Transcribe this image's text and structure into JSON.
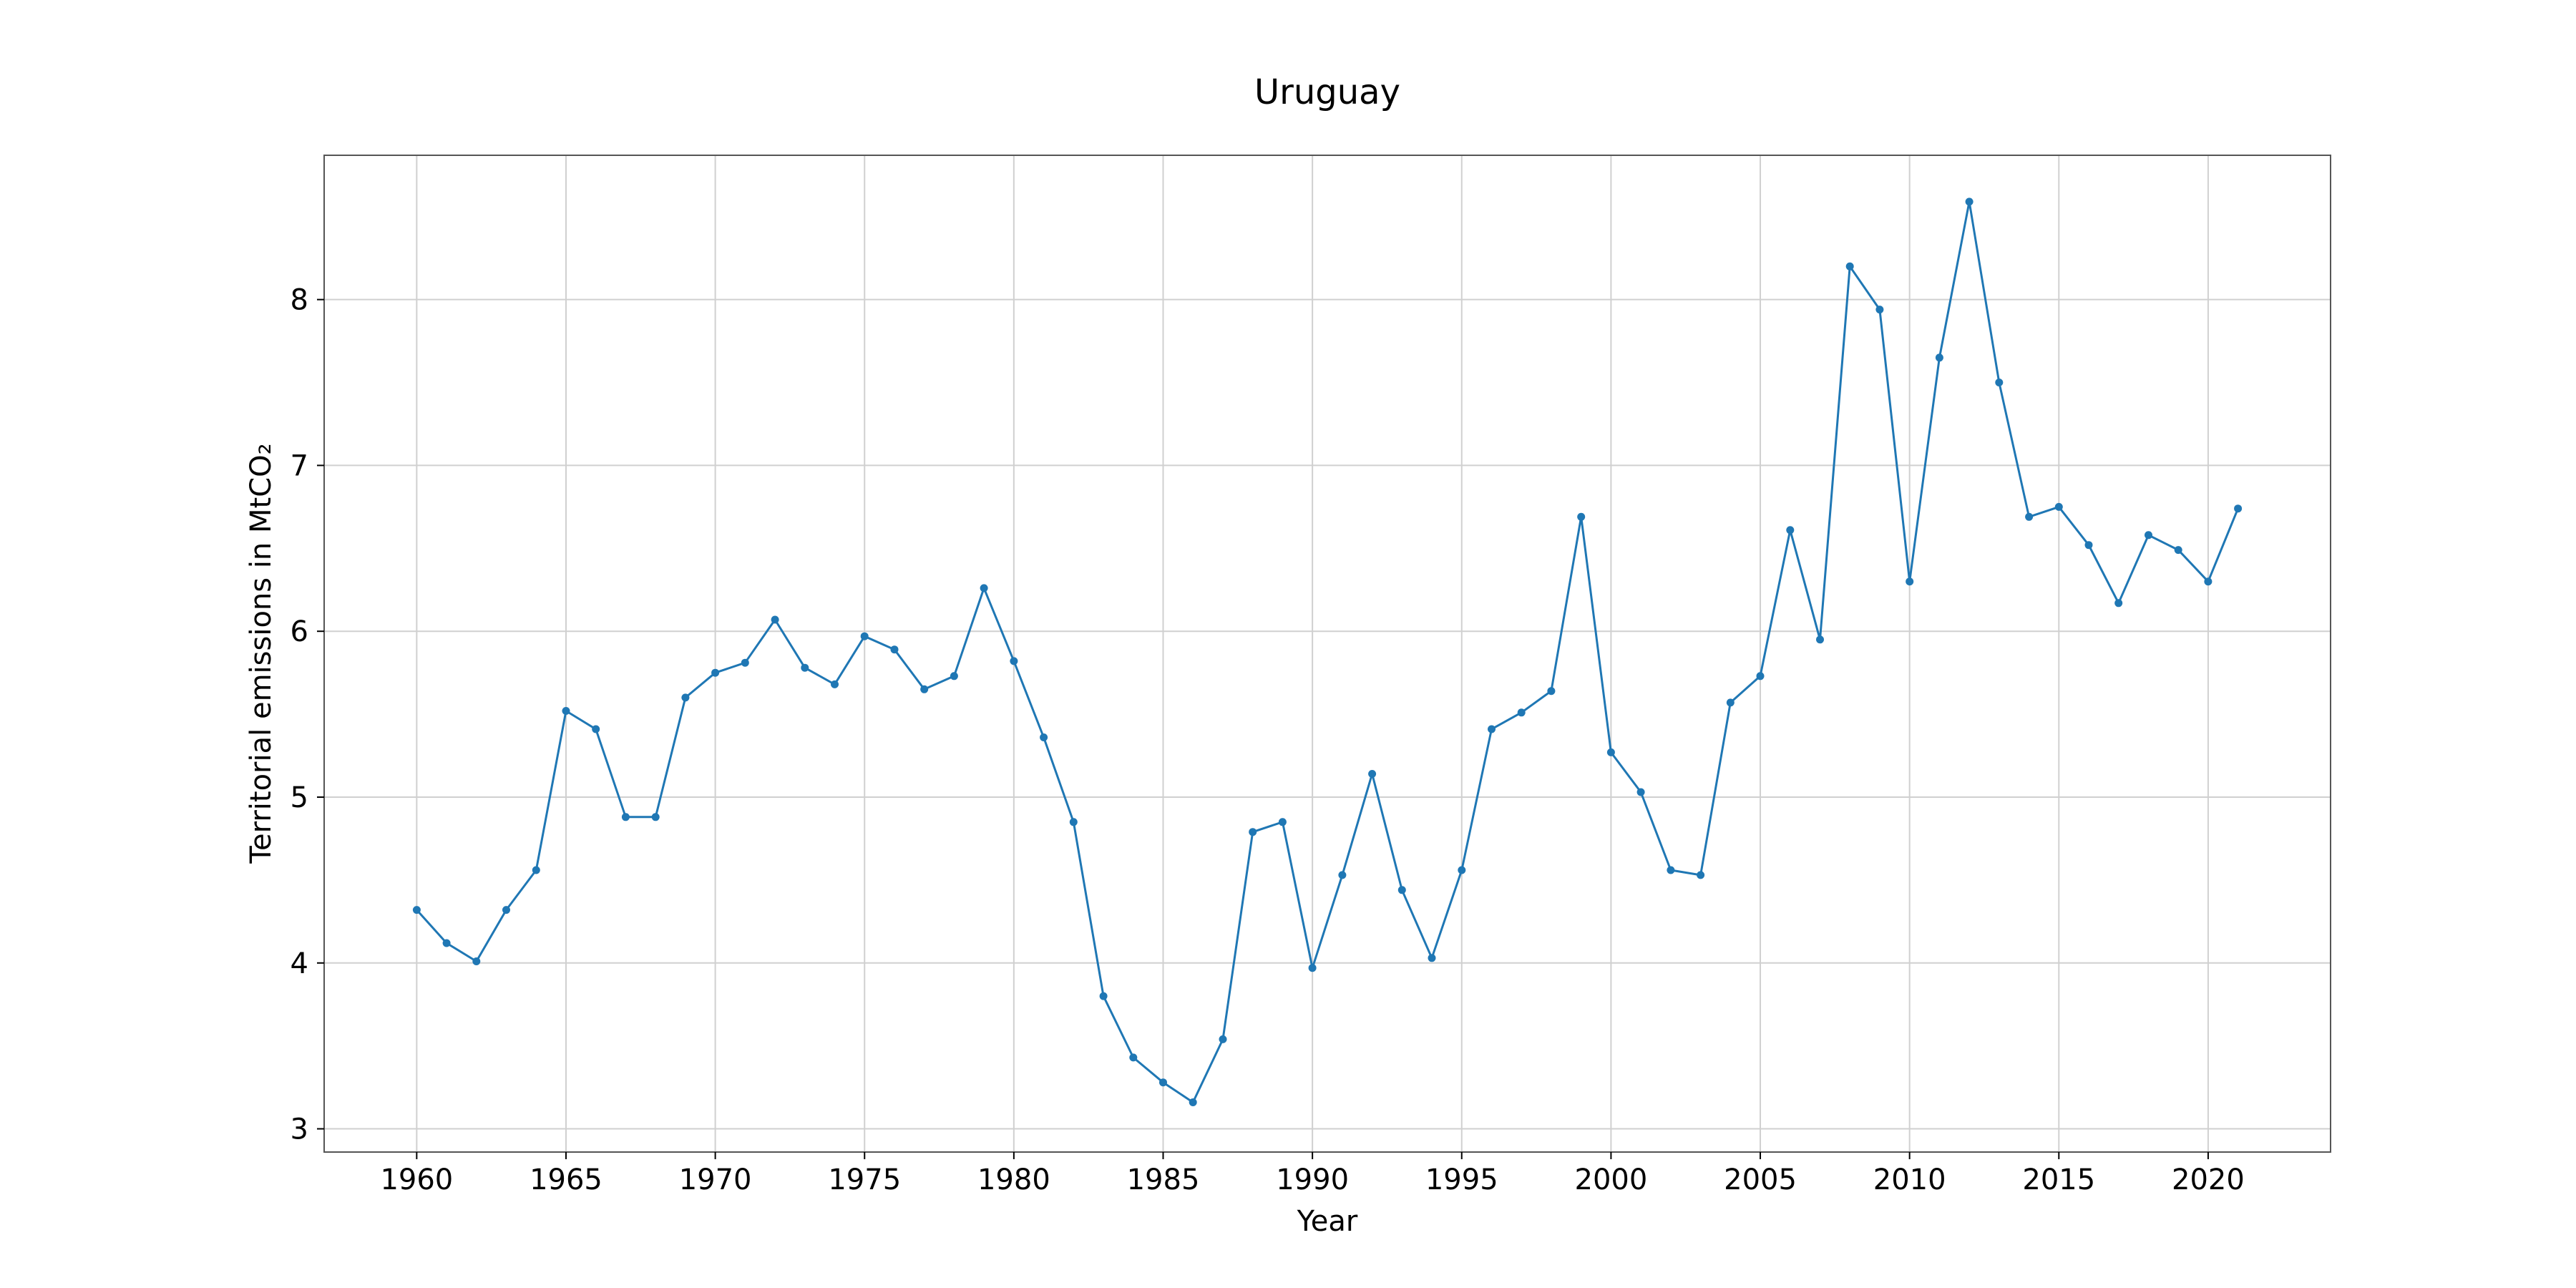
{
  "chart_data": {
    "type": "line",
    "title": "Uruguay",
    "xlabel": "Year",
    "ylabel": "Territorial emissions in MtCO₂",
    "xlim": [
      1956.9,
      2024.1
    ],
    "ylim": [
      2.86,
      8.87
    ],
    "xticks": [
      1960,
      1965,
      1970,
      1975,
      1980,
      1985,
      1990,
      1995,
      2000,
      2005,
      2010,
      2015,
      2020
    ],
    "yticks": [
      3,
      4,
      5,
      6,
      7,
      8
    ],
    "grid": true,
    "colors": {
      "line": "#1f77b4",
      "grid": "#d0d0d0",
      "frame": "#555555"
    },
    "series": [
      {
        "x": [
          1960,
          1961,
          1962,
          1963,
          1964,
          1965,
          1966,
          1967,
          1968,
          1969,
          1970,
          1971,
          1972,
          1973,
          1974,
          1975,
          1976,
          1977,
          1978,
          1979,
          1980,
          1981,
          1982,
          1983,
          1984,
          1985,
          1986,
          1987,
          1988,
          1989,
          1990,
          1991,
          1992,
          1993,
          1994,
          1995,
          1996,
          1997,
          1998,
          1999,
          2000,
          2001,
          2002,
          2003,
          2004,
          2005,
          2006,
          2007,
          2008,
          2009,
          2010,
          2011,
          2012,
          2013,
          2014,
          2015,
          2016,
          2017,
          2018,
          2019,
          2020,
          2021
        ],
        "values": [
          4.32,
          4.12,
          4.01,
          4.32,
          4.56,
          5.52,
          5.41,
          4.88,
          4.88,
          5.6,
          5.75,
          5.81,
          6.07,
          5.78,
          5.68,
          5.97,
          5.89,
          5.65,
          5.73,
          6.26,
          5.82,
          5.36,
          4.85,
          3.8,
          3.43,
          3.28,
          3.16,
          3.54,
          4.79,
          4.85,
          3.97,
          4.53,
          5.14,
          4.44,
          4.03,
          4.56,
          5.41,
          5.51,
          5.64,
          6.69,
          5.27,
          5.03,
          4.56,
          4.53,
          5.57,
          5.73,
          6.61,
          5.95,
          8.2,
          7.94,
          6.3,
          7.65,
          8.59,
          7.5,
          6.69,
          6.75,
          6.52,
          6.17,
          6.58,
          6.49,
          6.3,
          6.74
        ]
      }
    ]
  }
}
